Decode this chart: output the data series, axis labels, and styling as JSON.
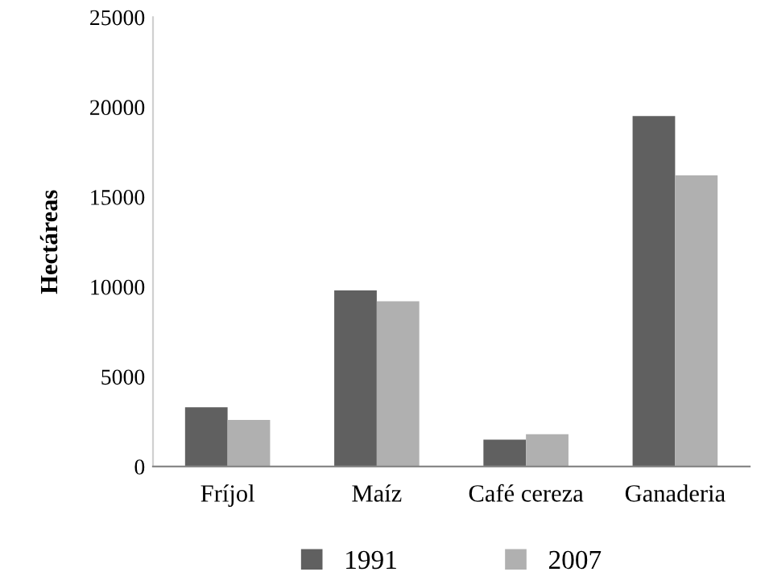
{
  "chart_data": {
    "type": "bar",
    "ylabel": "Hectáreas",
    "categories": [
      "Fríjol",
      "Maíz",
      "Café cereza",
      "Ganaderia"
    ],
    "series": [
      {
        "name": "1991",
        "color": "#606060",
        "values": [
          3300,
          9800,
          1500,
          19500
        ]
      },
      {
        "name": "2007",
        "color": "#b0b0b0",
        "values": [
          2600,
          9200,
          1800,
          16200
        ]
      }
    ],
    "ylim": [
      0,
      25000
    ],
    "yticks": [
      0,
      5000,
      10000,
      15000,
      20000,
      25000
    ],
    "grid": false,
    "legend": "bottom"
  }
}
